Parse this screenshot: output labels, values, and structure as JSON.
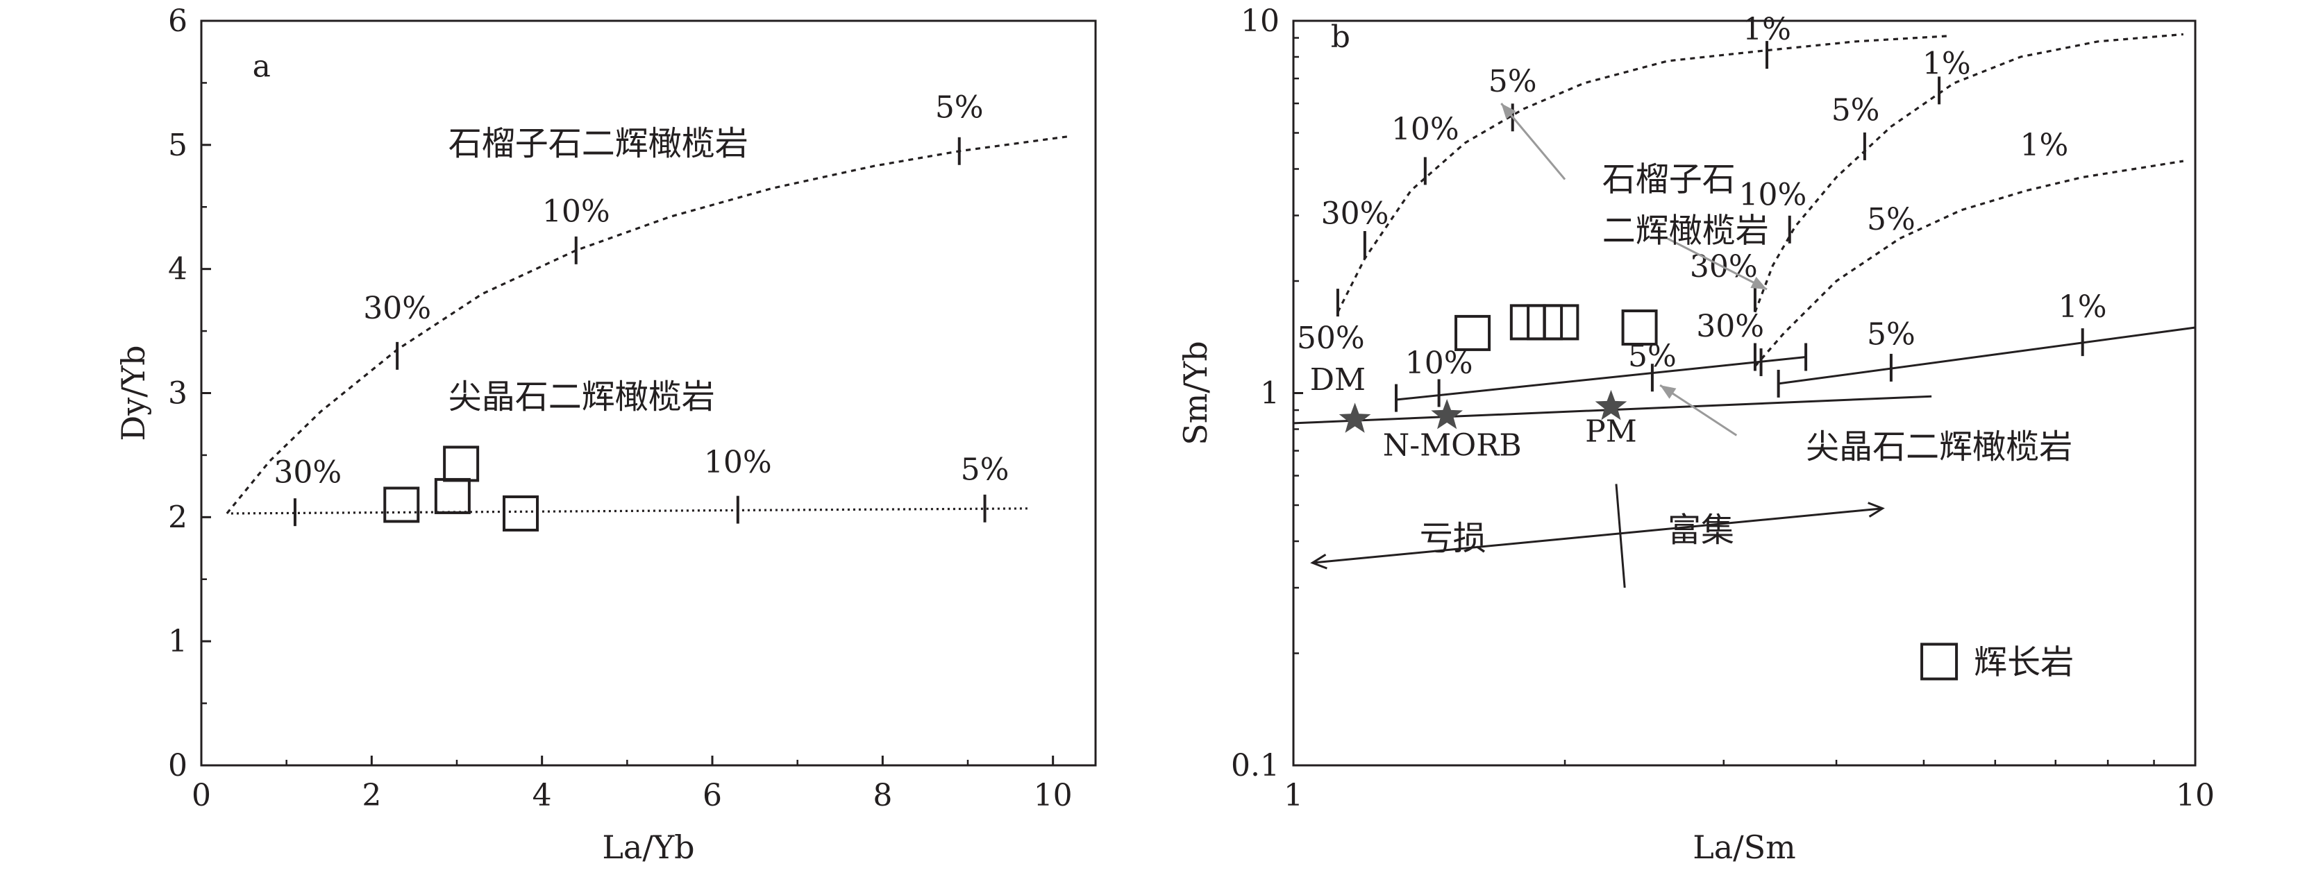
{
  "chart_data": [
    {
      "panel": "a",
      "type": "scatter",
      "title": "",
      "xlabel": "La/Yb",
      "ylabel": "Dy/Yb",
      "xlim": [
        0,
        10.5
      ],
      "ylim": [
        0,
        6
      ],
      "xscale": "linear",
      "yscale": "linear",
      "xticks": [
        0,
        2,
        4,
        6,
        8,
        10
      ],
      "yticks": [
        0,
        1,
        2,
        3,
        4,
        5,
        6
      ],
      "xtick_labels": [
        "0",
        "2",
        "4",
        "6",
        "8",
        "10"
      ],
      "ytick_labels": [
        "0",
        "1",
        "2",
        "3",
        "4",
        "5",
        "6"
      ],
      "grid": false,
      "series": [
        {
          "kind": "points",
          "marker": "square",
          "x": [
            2.35,
            2.95,
            3.05,
            3.75
          ],
          "y": [
            2.1,
            2.17,
            2.43,
            2.03
          ]
        }
      ],
      "curves": [
        {
          "label": "石榴子石二辉橄榄岩",
          "style": "dashed",
          "points": [
            [
              0.3,
              2.03
            ],
            [
              0.8,
              2.45
            ],
            [
              1.4,
              2.85
            ],
            [
              2.3,
              3.35
            ],
            [
              3.3,
              3.8
            ],
            [
              4.4,
              4.15
            ],
            [
              5.5,
              4.42
            ],
            [
              6.7,
              4.65
            ],
            [
              7.9,
              4.83
            ],
            [
              8.9,
              4.95
            ],
            [
              10.2,
              5.07
            ]
          ],
          "ticks": [
            [
              2.3,
              3.3
            ],
            [
              4.4,
              4.15
            ],
            [
              8.9,
              4.95
            ]
          ],
          "tick_labels": [
            {
              "text": "30%",
              "x": 2.3,
              "y": 3.6
            },
            {
              "text": "10%",
              "x": 4.4,
              "y": 4.38
            },
            {
              "text": "5%",
              "x": 8.9,
              "y": 5.22
            }
          ]
        },
        {
          "label": "尖晶石二辉橄榄岩",
          "style": "dotted",
          "points": [
            [
              0.35,
              2.03
            ],
            [
              9.7,
              2.07
            ]
          ],
          "ticks": [
            [
              1.1,
              2.04
            ],
            [
              6.3,
              2.06
            ],
            [
              9.2,
              2.07
            ]
          ],
          "tick_labels": [
            {
              "text": "30%",
              "x": 1.25,
              "y": 2.28
            },
            {
              "text": "10%",
              "x": 6.3,
              "y": 2.36
            },
            {
              "text": "5%",
              "x": 9.2,
              "y": 2.3
            }
          ]
        }
      ],
      "annotations": [
        {
          "text": "a",
          "x": 0.6,
          "y": 5.55
        },
        {
          "text": "石榴子石二辉橄榄岩",
          "x": 2.9,
          "y": 4.92
        },
        {
          "text": "尖晶石二辉橄榄岩",
          "x": 2.9,
          "y": 2.88
        }
      ]
    },
    {
      "panel": "b",
      "type": "scatter",
      "title": "",
      "xlabel": "La/Sm",
      "ylabel": "Sm/Yb",
      "xlim": [
        1,
        10
      ],
      "ylim": [
        0.1,
        10
      ],
      "xscale": "log",
      "yscale": "log",
      "xticks": [
        1,
        10
      ],
      "yticks": [
        0.1,
        1,
        10
      ],
      "xtick_labels": [
        "1",
        "10"
      ],
      "ytick_labels": [
        "0.1",
        "1",
        "10"
      ],
      "grid": false,
      "series": [
        {
          "name": "辉长岩",
          "kind": "points",
          "marker": "square",
          "x": [
            1.58,
            1.82,
            1.9,
            1.98,
            2.42
          ],
          "y": [
            1.45,
            1.55,
            1.55,
            1.55,
            1.5
          ]
        }
      ],
      "reference_points": [
        {
          "text": "DM",
          "x": 1.17,
          "y": 0.85,
          "label_x": 1.12,
          "label_y": 1.02
        },
        {
          "text": "N-MORB",
          "x": 1.48,
          "y": 0.87,
          "label_x": 1.5,
          "label_y": 0.68
        },
        {
          "text": "PM",
          "x": 2.25,
          "y": 0.92,
          "label_x": 2.25,
          "label_y": 0.74
        }
      ],
      "curves": [
        {
          "style": "dashed",
          "points": [
            [
              1.12,
              1.65
            ],
            [
              1.2,
              2.3
            ],
            [
              1.35,
              3.5
            ],
            [
              1.55,
              4.7
            ],
            [
              1.8,
              5.8
            ],
            [
              2.1,
              6.8
            ],
            [
              2.6,
              7.8
            ],
            [
              3.3,
              8.3
            ],
            [
              4.2,
              8.8
            ],
            [
              5.3,
              9.1
            ]
          ],
          "ticks": [
            [
              1.12,
              1.75
            ],
            [
              1.2,
              2.5
            ],
            [
              1.4,
              3.95
            ],
            [
              1.75,
              5.5
            ],
            [
              3.35,
              8.1
            ]
          ],
          "tick_labels": [
            {
              "text": "50%",
              "x": 1.1,
              "y": 1.32
            },
            {
              "text": "30%",
              "x": 1.17,
              "y": 2.85
            },
            {
              "text": "10%",
              "x": 1.4,
              "y": 4.8
            },
            {
              "text": "5%",
              "x": 1.75,
              "y": 6.45
            },
            {
              "text": "1%",
              "x": 3.35,
              "y": 8.9
            }
          ]
        },
        {
          "style": "dashed",
          "points": [
            [
              3.25,
              1.65
            ],
            [
              3.4,
              2.2
            ],
            [
              3.6,
              2.8
            ],
            [
              4.0,
              3.8
            ],
            [
              4.6,
              5.2
            ],
            [
              5.4,
              6.8
            ],
            [
              6.4,
              8.0
            ],
            [
              7.8,
              8.8
            ],
            [
              9.7,
              9.2
            ]
          ],
          "ticks": [
            [
              3.25,
              1.8
            ],
            [
              3.55,
              2.75
            ],
            [
              4.3,
              4.6
            ],
            [
              5.2,
              6.5
            ]
          ],
          "tick_labels": [
            {
              "text": "30%",
              "x": 3.0,
              "y": 2.05
            },
            {
              "text": "10%",
              "x": 3.4,
              "y": 3.2
            },
            {
              "text": "5%",
              "x": 4.2,
              "y": 5.4
            },
            {
              "text": "1%",
              "x": 5.3,
              "y": 7.2
            }
          ]
        },
        {
          "style": "dashed",
          "points": [
            [
              3.25,
              1.18
            ],
            [
              3.5,
              1.45
            ],
            [
              4.0,
              2.0
            ],
            [
              4.7,
              2.6
            ],
            [
              5.5,
              3.1
            ],
            [
              6.5,
              3.5
            ],
            [
              7.5,
              3.8
            ],
            [
              9.7,
              4.2
            ]
          ],
          "ticks": [
            [
              3.25,
              1.25
            ]
          ],
          "tick_labels": [
            {
              "text": "30%",
              "x": 3.05,
              "y": 1.42
            },
            {
              "text": "5%",
              "x": 4.6,
              "y": 2.75
            },
            {
              "text": "1%",
              "x": 6.8,
              "y": 4.35
            }
          ]
        },
        {
          "style": "solid",
          "points": [
            [
              1.3,
              0.96
            ],
            [
              3.7,
              1.25
            ]
          ],
          "ticks": [
            [
              1.3,
              0.97
            ],
            [
              1.45,
              1.0
            ],
            [
              2.5,
              1.1
            ],
            [
              3.3,
              1.21
            ],
            [
              3.7,
              1.25
            ]
          ],
          "tick_labels": [
            {
              "text": "10%",
              "x": 1.45,
              "y": 1.13
            },
            {
              "text": "5%",
              "x": 2.5,
              "y": 1.18
            }
          ]
        },
        {
          "style": "solid",
          "points": [
            [
              3.45,
              1.06
            ],
            [
              10,
              1.5
            ]
          ],
          "ticks": [
            [
              3.45,
              1.06
            ],
            [
              4.6,
              1.17
            ],
            [
              7.5,
              1.37
            ]
          ],
          "tick_labels": [
            {
              "text": "5%",
              "x": 4.6,
              "y": 1.35
            },
            {
              "text": "1%",
              "x": 7.5,
              "y": 1.6
            }
          ]
        },
        {
          "style": "solid",
          "points": [
            [
              1.0,
              0.83
            ],
            [
              5.1,
              0.98
            ]
          ]
        }
      ],
      "annotations": [
        {
          "text": "b",
          "x": 1.1,
          "y": 8.5
        },
        {
          "text": "石榴子石",
          "x": 2.2,
          "y": 3.5
        },
        {
          "text": "二辉橄榄岩",
          "x": 2.2,
          "y": 2.55
        },
        {
          "text": "尖晶石二辉橄榄岩",
          "x": 3.7,
          "y": 0.67
        },
        {
          "text": "亏损",
          "x": 1.38,
          "y": 0.38
        },
        {
          "text": "富集",
          "x": 2.6,
          "y": 0.4
        }
      ],
      "arrows": [
        {
          "from": [
            2.0,
            3.75
          ],
          "to": [
            1.7,
            6.0
          ]
        },
        {
          "from": [
            2.6,
            2.6
          ],
          "to": [
            3.35,
            1.9
          ]
        },
        {
          "from": [
            3.1,
            0.77
          ],
          "to": [
            2.55,
            1.05
          ]
        }
      ],
      "double_arrow": {
        "from": [
          1.05,
          0.35
        ],
        "to": [
          4.5,
          0.49
        ]
      },
      "divider": {
        "from": [
          2.28,
          0.57
        ],
        "to": [
          2.33,
          0.3
        ]
      },
      "legend": {
        "location": "bottom-right",
        "entries": [
          {
            "marker": "square",
            "label": "辉长岩",
            "x": 5.2,
            "y": 0.19
          }
        ]
      }
    }
  ]
}
